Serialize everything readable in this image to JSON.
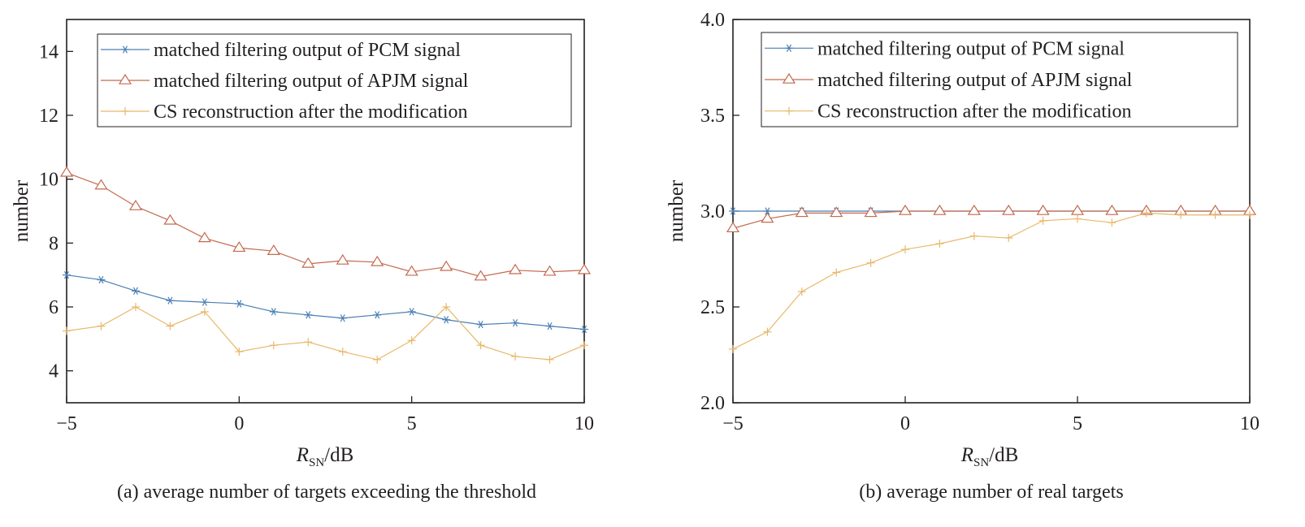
{
  "chart_data": [
    {
      "type": "line",
      "caption": "(a) average number of targets exceeding the threshold",
      "xlabel_main": "R",
      "xlabel_sub": "SN",
      "xlabel_unit": "/dB",
      "ylabel": "number",
      "xlim": [
        -5,
        10
      ],
      "ylim": [
        3,
        15
      ],
      "xticks": [
        -5,
        0,
        5,
        10
      ],
      "xtick_labels": [
        "−5",
        "0",
        "5",
        "10"
      ],
      "yticks": [
        4,
        6,
        8,
        10,
        12,
        14
      ],
      "ytick_labels": [
        "4",
        "6",
        "8",
        "10",
        "12",
        "14"
      ],
      "legend_position": "top",
      "x": [
        -5,
        -4,
        -3,
        -2,
        -1,
        0,
        1,
        2,
        3,
        4,
        5,
        6,
        7,
        8,
        9,
        10
      ],
      "series": [
        {
          "name": "matched filtering output of PCM signal",
          "marker": "asterisk",
          "color": "#4a7fb5",
          "values": [
            7.0,
            6.85,
            6.5,
            6.2,
            6.15,
            6.1,
            5.85,
            5.75,
            5.65,
            5.75,
            5.85,
            5.6,
            5.45,
            5.5,
            5.4,
            5.3
          ]
        },
        {
          "name": "matched filtering output of APJM signal",
          "marker": "triangle",
          "color": "#c46a50",
          "values": [
            10.2,
            9.8,
            9.15,
            8.7,
            8.15,
            7.85,
            7.75,
            7.35,
            7.45,
            7.4,
            7.1,
            7.25,
            6.95,
            7.15,
            7.1,
            7.15
          ]
        },
        {
          "name": "CS reconstruction after the modification",
          "marker": "plus",
          "color": "#e8b86a",
          "values": [
            5.25,
            5.4,
            6.0,
            5.4,
            5.85,
            4.6,
            4.8,
            4.9,
            4.6,
            4.35,
            4.95,
            6.0,
            4.8,
            4.45,
            4.35,
            4.8
          ]
        }
      ]
    },
    {
      "type": "line",
      "caption": "(b) average number of real targets",
      "xlabel_main": "R",
      "xlabel_sub": "SN",
      "xlabel_unit": "/dB",
      "ylabel": "number",
      "xlim": [
        -5,
        10
      ],
      "ylim": [
        2.0,
        4.0
      ],
      "xticks": [
        -5,
        0,
        5,
        10
      ],
      "xtick_labels": [
        "−5",
        "0",
        "5",
        "10"
      ],
      "yticks": [
        2.0,
        2.5,
        3.0,
        3.5,
        4.0
      ],
      "ytick_labels": [
        "2.0",
        "2.5",
        "3.0",
        "3.5",
        "4.0"
      ],
      "legend_position": "top",
      "x": [
        -5,
        -4,
        -3,
        -2,
        -1,
        0,
        1,
        2,
        3,
        4,
        5,
        6,
        7,
        8,
        9,
        10
      ],
      "series": [
        {
          "name": "matched filtering output of PCM signal",
          "marker": "asterisk",
          "color": "#4a7fb5",
          "values": [
            3.0,
            3.0,
            3.0,
            3.0,
            3.0,
            3.0,
            3.0,
            3.0,
            3.0,
            3.0,
            3.0,
            3.0,
            3.0,
            3.0,
            3.0,
            3.0
          ]
        },
        {
          "name": "matched filtering output of APJM signal",
          "marker": "triangle",
          "color": "#c46a50",
          "values": [
            2.91,
            2.96,
            2.99,
            2.99,
            2.99,
            3.0,
            3.0,
            3.0,
            3.0,
            3.0,
            3.0,
            3.0,
            3.0,
            3.0,
            3.0,
            3.0
          ]
        },
        {
          "name": "CS reconstruction after the modification",
          "marker": "plus",
          "color": "#e8b86a",
          "values": [
            2.28,
            2.37,
            2.58,
            2.68,
            2.73,
            2.8,
            2.83,
            2.87,
            2.86,
            2.95,
            2.96,
            2.94,
            2.99,
            2.98,
            2.98,
            2.98
          ]
        }
      ]
    }
  ]
}
